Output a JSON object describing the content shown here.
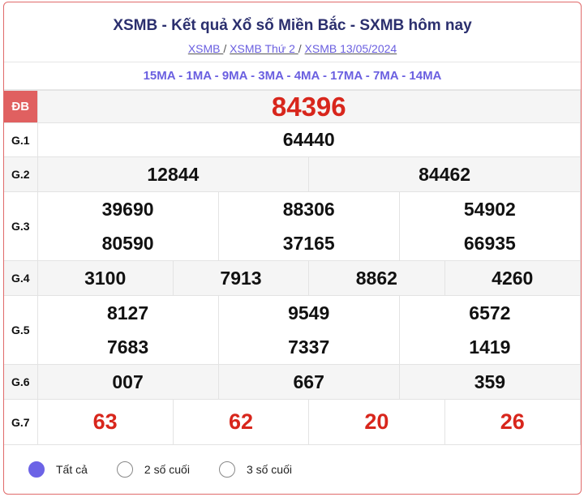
{
  "header": {
    "title": "XSMB - Kết quả Xổ số Miền Bắc - SXMB hôm nay",
    "breadcrumbs": [
      "XSMB ",
      "XSMB Thứ 2 ",
      "XSMB 13/05/2024"
    ],
    "separator": "/"
  },
  "codes": "15MA - 1MA - 9MA - 3MA - 4MA - 17MA - 7MA - 14MA",
  "prizes": {
    "db": {
      "label": "ĐB",
      "values": [
        "84396"
      ]
    },
    "g1": {
      "label": "G.1",
      "values": [
        "64440"
      ]
    },
    "g2": {
      "label": "G.2",
      "values": [
        "12844",
        "84462"
      ]
    },
    "g3": {
      "label": "G.3",
      "values": [
        "39690",
        "88306",
        "54902",
        "80590",
        "37165",
        "66935"
      ]
    },
    "g4": {
      "label": "G.4",
      "values": [
        "3100",
        "7913",
        "8862",
        "4260"
      ]
    },
    "g5": {
      "label": "G.5",
      "values": [
        "8127",
        "9549",
        "6572",
        "7683",
        "7337",
        "1419"
      ]
    },
    "g6": {
      "label": "G.6",
      "values": [
        "007",
        "667",
        "359"
      ]
    },
    "g7": {
      "label": "G.7",
      "values": [
        "63",
        "62",
        "20",
        "26"
      ]
    }
  },
  "filter": {
    "options": [
      "Tất cả",
      "2 số cuối",
      "3 số cuối"
    ],
    "selected": "Tất cả"
  },
  "colors": {
    "accent": "#6c63e6",
    "special": "#d8261c",
    "label_bg": "#e06060",
    "title": "#2b2f6e"
  }
}
